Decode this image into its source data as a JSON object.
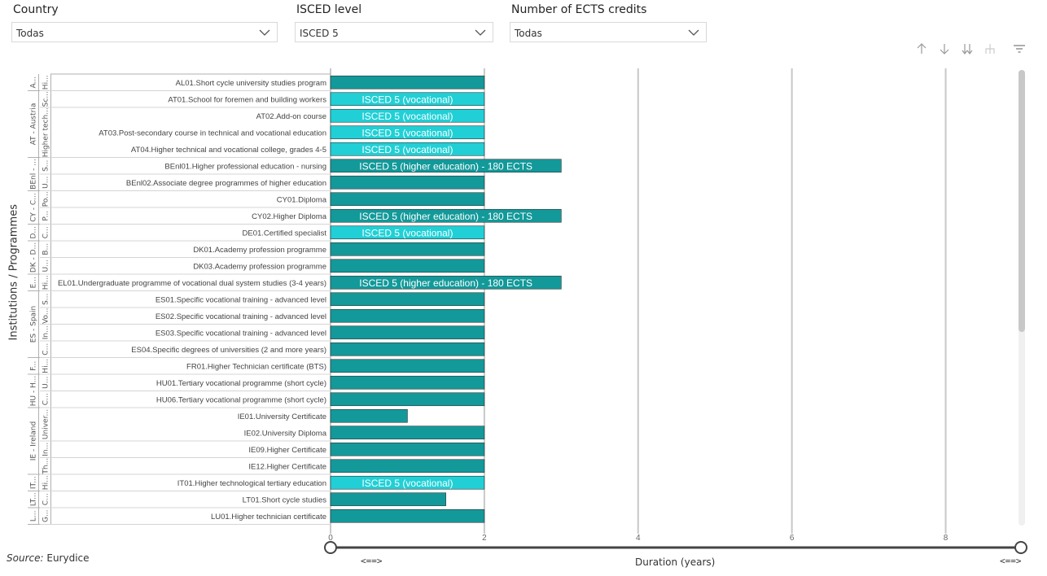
{
  "filters": [
    {
      "title": "Country",
      "value": "Todas"
    },
    {
      "title": "ISCED level",
      "value": "ISCED 5"
    },
    {
      "title": "Number of ECTS credits",
      "value": "Todas"
    }
  ],
  "toolbar": [
    "drill-up-icon",
    "drill-down-icon",
    "expand-all-icon",
    "expand-hierarchy-icon",
    "filter-icon"
  ],
  "colors": {
    "dark_teal": "#13999a",
    "light_teal": "#20d0d6",
    "grid": "#c8c8c8",
    "divider": "#b0b0b0"
  },
  "source": {
    "label": "Source:",
    "value": "Eurydice"
  },
  "range_slider": {
    "left_label": "<==>",
    "right_label": "<==>",
    "min": 0,
    "max": 9
  },
  "chart_data": {
    "type": "bar",
    "orientation": "horizontal",
    "xlabel": "Duration (years)",
    "ylabel": "Institutions / Programmes",
    "xlim": [
      0,
      9
    ],
    "xticks": [
      0,
      2,
      4,
      6,
      8
    ],
    "grid": true,
    "country_groups": [
      {
        "label": "A...",
        "rows": 1
      },
      {
        "label": "AT - Austria",
        "rows": 4
      },
      {
        "label": "BEnl - ...",
        "rows": 2
      },
      {
        "label": "CY - C...",
        "rows": 2
      },
      {
        "label": "D...",
        "rows": 1
      },
      {
        "label": "DK - D...",
        "rows": 2
      },
      {
        "label": "E...",
        "rows": 1
      },
      {
        "label": "ES - Spain",
        "rows": 4
      },
      {
        "label": "F...",
        "rows": 1
      },
      {
        "label": "HU - H...",
        "rows": 2
      },
      {
        "label": "IE - Ireland",
        "rows": 4
      },
      {
        "label": "IT...",
        "rows": 1
      },
      {
        "label": "LT...",
        "rows": 1
      },
      {
        "label": "L...",
        "rows": 1
      }
    ],
    "institution_groups": [
      {
        "label": "Hi...",
        "rows": 1
      },
      {
        "label": "Sc...",
        "rows": 1
      },
      {
        "label": "Higher tech...",
        "rows": 3
      },
      {
        "label": "S...",
        "rows": 1
      },
      {
        "label": "U...",
        "rows": 1
      },
      {
        "label": "Po...",
        "rows": 1
      },
      {
        "label": "P...",
        "rows": 1
      },
      {
        "label": "C...",
        "rows": 1
      },
      {
        "label": "B...",
        "rows": 1
      },
      {
        "label": "U...",
        "rows": 1
      },
      {
        "label": "Hi...",
        "rows": 1
      },
      {
        "label": "S...",
        "rows": 1
      },
      {
        "label": "Vo...",
        "rows": 1
      },
      {
        "label": "In...",
        "rows": 1
      },
      {
        "label": "C...",
        "rows": 1
      },
      {
        "label": "Hi...",
        "rows": 1
      },
      {
        "label": "U...",
        "rows": 1
      },
      {
        "label": "C...",
        "rows": 1
      },
      {
        "label": "Univer...",
        "rows": 2
      },
      {
        "label": "In...",
        "rows": 1
      },
      {
        "label": "Th...",
        "rows": 1
      },
      {
        "label": "Hi...",
        "rows": 1
      },
      {
        "label": "C...",
        "rows": 1
      },
      {
        "label": "G...",
        "rows": 1
      }
    ],
    "rows": [
      {
        "programme": "AL01.Short cycle university studies program",
        "value": 2,
        "category": "dark",
        "label": ""
      },
      {
        "programme": "AT01.School for foremen and building workers",
        "value": 2,
        "category": "light",
        "label": "ISCED 5 (vocational)"
      },
      {
        "programme": "AT02.Add-on course",
        "value": 2,
        "category": "light",
        "label": "ISCED 5 (vocational)"
      },
      {
        "programme": "AT03.Post-secondary course in technical and vocational education",
        "value": 2,
        "category": "light",
        "label": "ISCED 5 (vocational)"
      },
      {
        "programme": "AT04.Higher technical and vocational college, grades 4-5",
        "value": 2,
        "category": "light",
        "label": "ISCED 5 (vocational)"
      },
      {
        "programme": "BEnl01.Higher professional education - nursing",
        "value": 3,
        "category": "dark",
        "label": "ISCED 5 (higher education) - 180 ECTS"
      },
      {
        "programme": "BEnl02.Associate degree programmes of higher education",
        "value": 2,
        "category": "dark",
        "label": ""
      },
      {
        "programme": "CY01.Diploma",
        "value": 2,
        "category": "dark",
        "label": ""
      },
      {
        "programme": "CY02.Higher Diploma",
        "value": 3,
        "category": "dark",
        "label": "ISCED 5 (higher education) - 180 ECTS"
      },
      {
        "programme": "DE01.Certified specialist",
        "value": 2,
        "category": "light",
        "label": "ISCED 5 (vocational)"
      },
      {
        "programme": "DK01.Academy profession programme",
        "value": 2,
        "category": "dark",
        "label": ""
      },
      {
        "programme": "DK03.Academy profession programme",
        "value": 2,
        "category": "dark",
        "label": ""
      },
      {
        "programme": "EL01.Undergraduate programme of vocational dual system studies (3-4 years)",
        "value": 3,
        "category": "dark",
        "label": "ISCED 5 (higher education) - 180 ECTS"
      },
      {
        "programme": "ES01.Specific vocational training - advanced level",
        "value": 2,
        "category": "dark",
        "label": ""
      },
      {
        "programme": "ES02.Specific vocational training - advanced level",
        "value": 2,
        "category": "dark",
        "label": ""
      },
      {
        "programme": "ES03.Specific vocational training - advanced level",
        "value": 2,
        "category": "dark",
        "label": ""
      },
      {
        "programme": "ES04.Specific degrees of universities (2 and more years)",
        "value": 2,
        "category": "dark",
        "label": ""
      },
      {
        "programme": "FR01.Higher Technician certificate (BTS)",
        "value": 2,
        "category": "dark",
        "label": ""
      },
      {
        "programme": "HU01.Tertiary vocational programme (short cycle)",
        "value": 2,
        "category": "dark",
        "label": ""
      },
      {
        "programme": "HU06.Tertiary vocational programme (short cycle)",
        "value": 2,
        "category": "dark",
        "label": ""
      },
      {
        "programme": "IE01.University Certificate",
        "value": 1,
        "category": "dark",
        "label": ""
      },
      {
        "programme": "IE02.University Diploma",
        "value": 2,
        "category": "dark",
        "label": ""
      },
      {
        "programme": "IE09.Higher Certificate",
        "value": 2,
        "category": "dark",
        "label": ""
      },
      {
        "programme": "IE12.Higher Certificate",
        "value": 2,
        "category": "dark",
        "label": ""
      },
      {
        "programme": "IT01.Higher technological tertiary education",
        "value": 2,
        "category": "light",
        "label": "ISCED 5 (vocational)"
      },
      {
        "programme": "LT01.Short cycle studies",
        "value": 1.5,
        "category": "dark",
        "label": ""
      },
      {
        "programme": "LU01.Higher technician certificate",
        "value": 2,
        "category": "dark",
        "label": ""
      }
    ]
  }
}
